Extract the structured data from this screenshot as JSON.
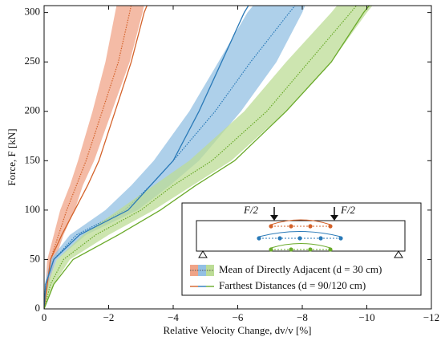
{
  "chart_data": {
    "type": "line",
    "xlabel": "Relative Velocity Change, dv/v [%]",
    "ylabel": "Force, F [kN]",
    "xlim": [
      0,
      -12
    ],
    "ylim": [
      0,
      307
    ],
    "xticks": [
      0,
      {
        "value": -2,
        "label": "−2"
      },
      {
        "value": -4,
        "label": "−4"
      },
      {
        "value": -6,
        "label": "−6"
      },
      {
        "value": -8,
        "label": "−8"
      },
      {
        "value": -10,
        "label": "−10"
      },
      {
        "value": -12,
        "label": "−12"
      }
    ],
    "yticks": [
      0,
      50,
      100,
      150,
      200,
      250,
      300
    ],
    "legend": [
      "Mean of Directly Adjacent (d = 30 cm)",
      "Farthest Distances (d = 90/120 cm)"
    ],
    "annotations": [
      "F/2",
      "F/2"
    ],
    "series": [
      {
        "style": "band",
        "color": "#d4622a",
        "band_color": "#f0a488",
        "values": [
          0,
          25,
          50,
          75,
          100,
          125,
          150,
          200,
          250,
          300,
          308
        ],
        "x": [
          0,
          -0.1,
          -0.2,
          -0.45,
          -0.7,
          -1.0,
          -1.3,
          -1.8,
          -2.3,
          -2.65,
          -2.7
        ],
        "x_lower": [
          0,
          -0.05,
          -0.1,
          -0.3,
          -0.5,
          -0.8,
          -1.05,
          -1.5,
          -1.9,
          -2.2,
          -2.25
        ],
        "x_upper": [
          0,
          -0.15,
          -0.35,
          -0.6,
          -0.95,
          -1.2,
          -1.55,
          -2.1,
          -2.65,
          -3.05,
          -3.1
        ]
      },
      {
        "style": "band",
        "color": "#2a7ab8",
        "band_color": "#93c0e3",
        "values": [
          0,
          25,
          50,
          75,
          100,
          125,
          150,
          200,
          250,
          300,
          308
        ],
        "x": [
          0,
          -0.05,
          -0.3,
          -1.0,
          -2.5,
          -3.3,
          -4.0,
          -5.3,
          -6.4,
          -7.6,
          -7.8
        ],
        "x_lower": [
          0,
          -0.02,
          -0.2,
          -0.8,
          -1.9,
          -2.7,
          -3.4,
          -4.5,
          -5.4,
          -6.3,
          -6.5
        ],
        "x_upper": [
          0,
          -0.1,
          -0.4,
          -1.3,
          -2.9,
          -3.9,
          -4.8,
          -6.1,
          -7.2,
          -8.0,
          -8.1
        ]
      },
      {
        "style": "band",
        "color": "#6aaa2a",
        "band_color": "#bcdc96",
        "values": [
          0,
          25,
          50,
          75,
          100,
          125,
          150,
          200,
          250,
          300,
          308
        ],
        "x": [
          0,
          -0.2,
          -0.6,
          -1.6,
          -3.0,
          -4.0,
          -5.2,
          -6.9,
          -8.2,
          -9.5,
          -9.7
        ],
        "x_lower": [
          0,
          -0.1,
          -0.4,
          -1.2,
          -2.3,
          -3.4,
          -4.5,
          -6.2,
          -7.5,
          -8.9,
          -9.1
        ],
        "x_upper": [
          0,
          -0.3,
          -0.8,
          -2.0,
          -3.4,
          -4.6,
          -5.8,
          -7.5,
          -8.9,
          -10.0,
          -10.2
        ]
      },
      {
        "style": "line",
        "color": "#d4622a",
        "values": [
          0,
          25,
          50,
          75,
          100,
          125,
          150,
          200,
          250,
          300,
          308
        ],
        "x": [
          0,
          -0.1,
          -0.2,
          -0.55,
          -0.95,
          -1.35,
          -1.7,
          -2.2,
          -2.7,
          -3.1,
          -3.2
        ]
      },
      {
        "style": "line",
        "color": "#2a7ab8",
        "values": [
          0,
          25,
          50,
          75,
          100,
          125,
          150,
          200,
          250,
          300,
          308
        ],
        "x": [
          0,
          -0.05,
          -0.3,
          -1.1,
          -2.6,
          -3.3,
          -4.0,
          -4.8,
          -5.5,
          -6.2,
          -6.35
        ]
      },
      {
        "style": "line",
        "color": "#6aaa2a",
        "values": [
          0,
          25,
          50,
          75,
          100,
          125,
          150,
          200,
          250,
          300,
          308
        ],
        "x": [
          0,
          -0.3,
          -0.9,
          -2.3,
          -3.6,
          -4.7,
          -5.9,
          -7.5,
          -8.9,
          -9.9,
          -10.1
        ]
      }
    ]
  }
}
